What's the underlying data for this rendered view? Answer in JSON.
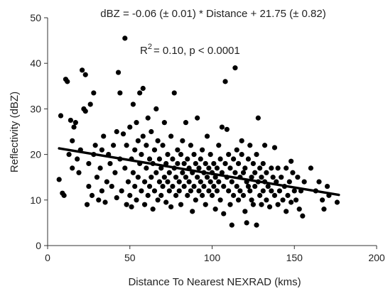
{
  "chart_data": {
    "type": "scatter",
    "title": "",
    "xlabel": "Distance To Nearest NEXRAD (kms)",
    "ylabel": "Reflectivity (dBZ)",
    "xlim": [
      0,
      200
    ],
    "ylim": [
      0,
      50
    ],
    "x_ticks": [
      "0",
      "50",
      "100",
      "150",
      "200"
    ],
    "y_ticks": [
      "0",
      "10",
      "20",
      "30",
      "40",
      "50"
    ],
    "grid": false,
    "legend": "none",
    "annotations": {
      "equation": "dBZ = -0.06 (± 0.01) * Distance + 21.75 (± 0.82)",
      "r_squared_prefix": "R",
      "r_squared_exponent": "2",
      "r_squared_rest": "= 0.10, p < 0.0001"
    },
    "trendline": {
      "slope": -0.06,
      "intercept": 21.75,
      "x_range": [
        7,
        177
      ]
    },
    "colors": {
      "points": "#000000",
      "trendline": "#000000",
      "axes": "#333333"
    },
    "series": [
      {
        "points": [
          [
            7,
            14.5
          ],
          [
            8,
            28.5
          ],
          [
            9,
            11.5
          ],
          [
            10,
            11
          ],
          [
            11,
            36.5
          ],
          [
            12,
            36
          ],
          [
            13,
            20
          ],
          [
            14,
            27.5
          ],
          [
            15,
            23
          ],
          [
            15,
            17
          ],
          [
            16,
            26
          ],
          [
            17,
            27
          ],
          [
            18,
            19
          ],
          [
            19,
            16
          ],
          [
            20,
            21
          ],
          [
            21,
            38.5
          ],
          [
            22,
            30
          ],
          [
            23,
            29.5
          ],
          [
            23,
            37.5
          ],
          [
            24,
            9
          ],
          [
            25,
            13
          ],
          [
            25,
            18
          ],
          [
            26,
            31
          ],
          [
            27,
            11
          ],
          [
            28,
            33.5
          ],
          [
            28,
            20
          ],
          [
            29,
            22
          ],
          [
            30,
            15
          ],
          [
            31,
            10
          ],
          [
            32,
            17
          ],
          [
            33,
            12
          ],
          [
            33,
            21
          ],
          [
            34,
            24
          ],
          [
            35,
            9.5
          ],
          [
            36,
            14
          ],
          [
            37,
            20
          ],
          [
            38,
            18
          ],
          [
            39,
            13
          ],
          [
            40,
            22
          ],
          [
            41,
            16
          ],
          [
            42,
            10.5
          ],
          [
            42,
            25
          ],
          [
            43,
            38
          ],
          [
            44,
            33.5
          ],
          [
            44,
            19
          ],
          [
            45,
            12
          ],
          [
            46,
            24.5
          ],
          [
            47,
            17
          ],
          [
            47,
            45.5
          ],
          [
            48,
            9
          ],
          [
            48,
            22
          ],
          [
            49,
            14
          ],
          [
            50,
            26
          ],
          [
            50,
            11
          ],
          [
            51,
            19
          ],
          [
            51,
            8.5
          ],
          [
            52,
            31
          ],
          [
            52,
            16
          ],
          [
            53,
            21
          ],
          [
            53,
            13
          ],
          [
            54,
            27
          ],
          [
            54,
            10
          ],
          [
            55,
            23
          ],
          [
            55,
            15
          ],
          [
            56,
            18
          ],
          [
            56,
            33.5
          ],
          [
            57,
            12
          ],
          [
            57,
            20
          ],
          [
            58,
            34.5
          ],
          [
            58,
            24
          ],
          [
            59,
            14
          ],
          [
            59,
            9
          ],
          [
            60,
            17
          ],
          [
            60,
            22
          ],
          [
            61,
            11
          ],
          [
            61,
            28
          ],
          [
            62,
            19
          ],
          [
            62,
            13
          ],
          [
            63,
            25
          ],
          [
            63,
            15
          ],
          [
            64,
            8
          ],
          [
            64,
            18
          ],
          [
            65,
            21
          ],
          [
            65,
            12
          ],
          [
            66,
            16
          ],
          [
            66,
            30
          ],
          [
            67,
            23
          ],
          [
            67,
            10
          ],
          [
            68,
            14
          ],
          [
            68,
            19
          ],
          [
            69,
            17
          ],
          [
            69,
            11
          ],
          [
            70,
            22
          ],
          [
            70,
            13
          ],
          [
            71,
            15
          ],
          [
            71,
            27
          ],
          [
            72,
            18
          ],
          [
            72,
            9.5
          ],
          [
            73,
            20
          ],
          [
            73,
            14
          ],
          [
            74,
            12
          ],
          [
            74,
            16
          ],
          [
            75,
            24
          ],
          [
            75,
            8.5
          ],
          [
            76,
            19
          ],
          [
            76,
            13
          ],
          [
            77,
            17
          ],
          [
            77,
            33.5
          ],
          [
            78,
            15
          ],
          [
            78,
            11
          ],
          [
            79,
            21
          ],
          [
            79,
            18
          ],
          [
            80,
            14
          ],
          [
            80,
            12
          ],
          [
            81,
            20
          ],
          [
            81,
            9
          ],
          [
            82,
            16
          ],
          [
            82,
            23
          ],
          [
            83,
            13
          ],
          [
            83,
            18
          ],
          [
            84,
            15
          ],
          [
            84,
            27
          ],
          [
            85,
            11
          ],
          [
            85,
            19
          ],
          [
            86,
            17
          ],
          [
            86,
            14
          ],
          [
            87,
            12
          ],
          [
            87,
            22
          ],
          [
            88,
            16
          ],
          [
            88,
            7.5
          ],
          [
            89,
            20
          ],
          [
            89,
            13
          ],
          [
            90,
            18
          ],
          [
            90,
            10
          ],
          [
            91,
            15
          ],
          [
            91,
            28
          ],
          [
            92,
            17
          ],
          [
            92,
            12
          ],
          [
            93,
            14
          ],
          [
            93,
            19
          ],
          [
            94,
            11
          ],
          [
            94,
            21
          ],
          [
            95,
            16
          ],
          [
            95,
            13
          ],
          [
            96,
            18
          ],
          [
            96,
            9
          ],
          [
            97,
            15
          ],
          [
            97,
            24
          ],
          [
            98,
            12
          ],
          [
            98,
            17
          ],
          [
            99,
            14
          ],
          [
            99,
            20
          ],
          [
            100,
            11
          ],
          [
            100,
            16
          ],
          [
            101,
            13
          ],
          [
            101,
            18
          ],
          [
            102,
            15
          ],
          [
            102,
            8
          ],
          [
            103,
            17
          ],
          [
            103,
            12
          ],
          [
            104,
            14
          ],
          [
            104,
            22
          ],
          [
            105,
            10
          ],
          [
            105,
            19
          ],
          [
            106,
            16
          ],
          [
            106,
            26
          ],
          [
            107,
            13
          ],
          [
            107,
            7
          ],
          [
            108,
            18
          ],
          [
            108,
            36
          ],
          [
            109,
            15
          ],
          [
            109,
            25.5
          ],
          [
            110,
            12
          ],
          [
            110,
            20
          ],
          [
            111,
            17
          ],
          [
            111,
            9
          ],
          [
            112,
            14
          ],
          [
            112,
            4.5
          ],
          [
            113,
            19
          ],
          [
            113,
            11
          ],
          [
            114,
            16
          ],
          [
            114,
            39
          ],
          [
            115,
            13
          ],
          [
            115,
            21
          ],
          [
            116,
            18
          ],
          [
            116,
            10
          ],
          [
            117,
            15
          ],
          [
            117,
            12
          ],
          [
            118,
            20
          ],
          [
            118,
            23
          ],
          [
            119,
            11
          ],
          [
            119,
            16
          ],
          [
            120,
            17
          ],
          [
            120,
            7.5
          ],
          [
            121,
            14
          ],
          [
            121,
            5
          ],
          [
            122,
            19
          ],
          [
            122,
            13
          ],
          [
            123,
            12
          ],
          [
            123,
            22
          ],
          [
            124,
            15
          ],
          [
            124,
            10
          ],
          [
            125,
            18
          ],
          [
            125,
            9
          ],
          [
            126,
            13
          ],
          [
            126,
            16
          ],
          [
            127,
            4.5
          ],
          [
            127,
            20
          ],
          [
            128,
            14
          ],
          [
            128,
            28
          ],
          [
            129,
            11
          ],
          [
            129,
            17
          ],
          [
            130,
            15
          ],
          [
            130,
            9
          ],
          [
            131,
            18
          ],
          [
            131,
            12
          ],
          [
            132,
            14
          ],
          [
            132,
            22
          ],
          [
            133,
            10
          ],
          [
            133,
            16
          ],
          [
            134,
            13
          ],
          [
            135,
            8.5
          ],
          [
            136,
            17
          ],
          [
            136,
            12
          ],
          [
            137,
            15
          ],
          [
            138,
            11
          ],
          [
            138,
            21.5
          ],
          [
            139,
            14
          ],
          [
            140,
            9
          ],
          [
            140,
            17
          ],
          [
            141,
            12
          ],
          [
            142,
            15
          ],
          [
            143,
            10
          ],
          [
            144,
            13
          ],
          [
            145,
            17
          ],
          [
            145,
            7.5
          ],
          [
            146,
            11
          ],
          [
            147,
            14
          ],
          [
            148,
            18.5
          ],
          [
            148,
            9.5
          ],
          [
            149,
            16
          ],
          [
            150,
            12
          ],
          [
            151,
            10
          ],
          [
            152,
            15
          ],
          [
            153,
            8
          ],
          [
            154,
            12
          ],
          [
            155,
            6.5
          ],
          [
            156,
            14
          ],
          [
            160,
            17
          ],
          [
            163,
            12
          ],
          [
            165,
            14
          ],
          [
            167,
            10
          ],
          [
            168,
            8
          ],
          [
            170,
            13
          ],
          [
            171,
            11
          ],
          [
            176,
            9.5
          ]
        ]
      }
    ]
  }
}
